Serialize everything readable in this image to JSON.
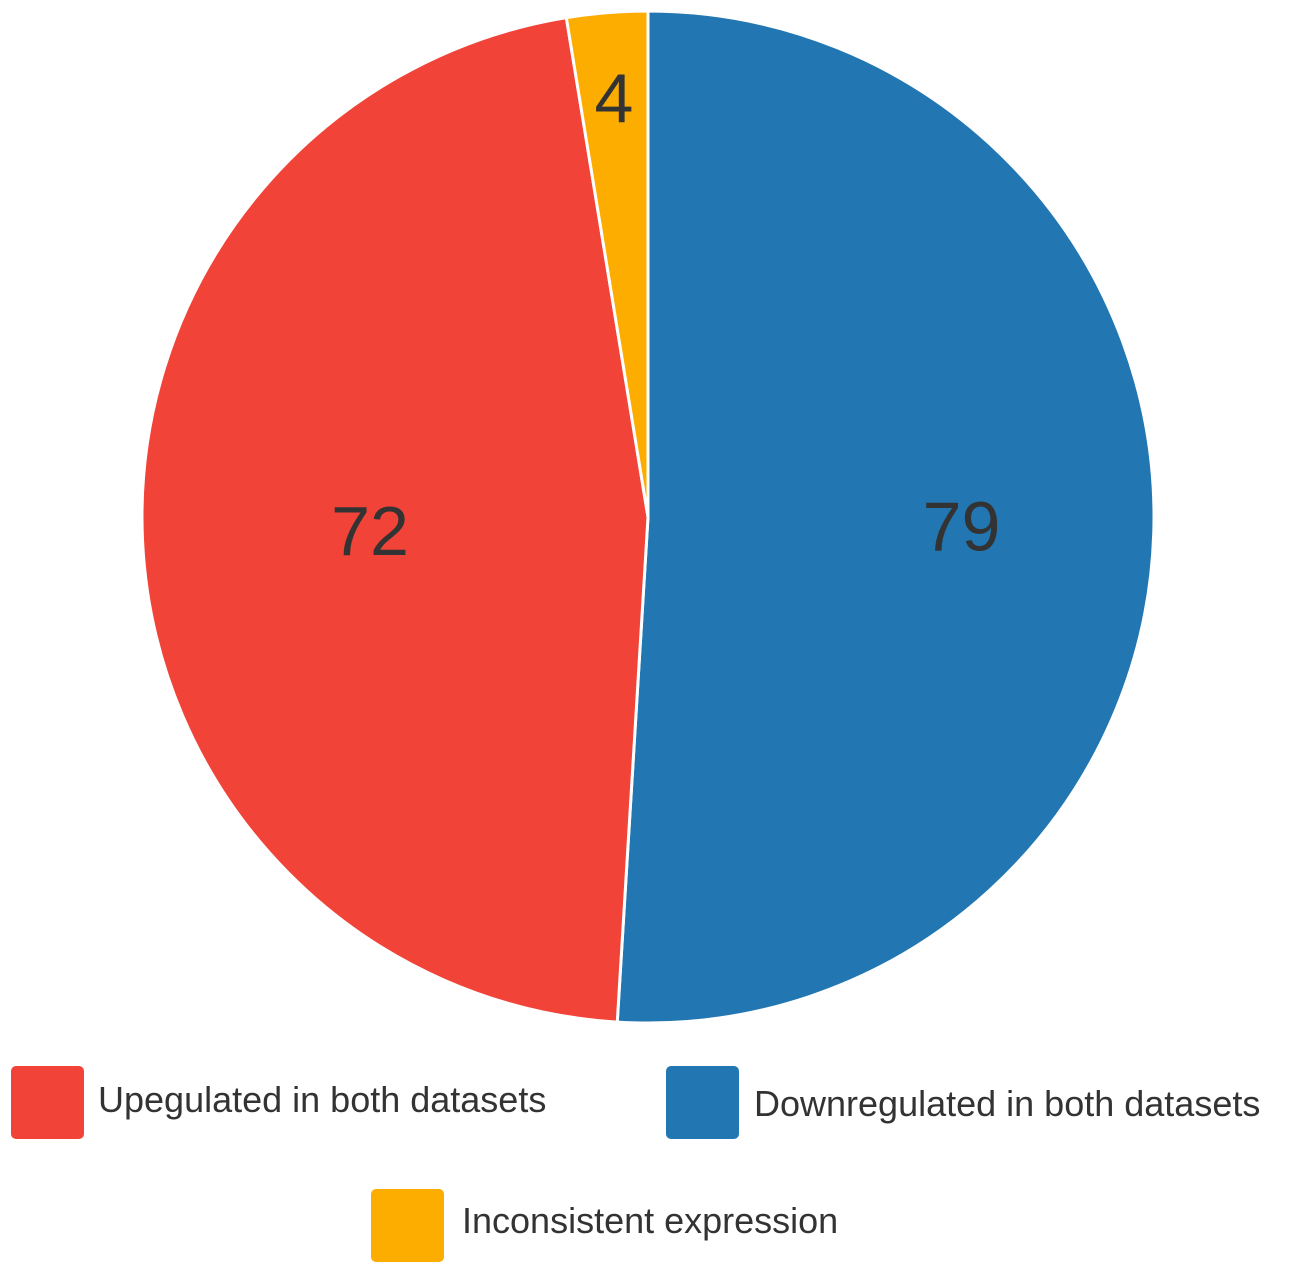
{
  "chart_data": {
    "type": "pie",
    "categories": [
      "Upegulated in both datasets",
      "Downregulated in both datasets",
      "Inconsistent expression"
    ],
    "values": [
      72,
      79,
      4
    ],
    "value_labels": [
      "72",
      "79",
      "4"
    ],
    "colors": [
      "#f14338",
      "#2277b3",
      "#fdad00"
    ],
    "legend_position": "bottom",
    "legend": [
      {
        "label": "Upegulated in both datasets",
        "color": "#f14338"
      },
      {
        "label": "Downregulated in both datasets",
        "color": "#2277b3"
      },
      {
        "label": "Inconsistent expression",
        "color": "#fdad00"
      }
    ]
  }
}
